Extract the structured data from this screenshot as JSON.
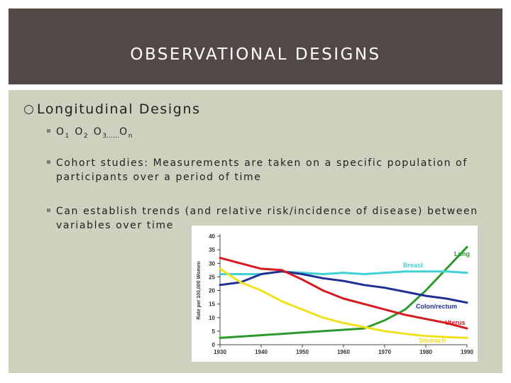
{
  "header": {
    "title": "OBSERVATIONAL DESIGNS"
  },
  "main": {
    "heading": "Longitudinal Designs",
    "observations": [
      {
        "base": "O",
        "sub": "1"
      },
      {
        "base": "O",
        "sub": "2"
      },
      {
        "base": "O",
        "sub": "3……"
      },
      {
        "base": "O",
        "sub": "n"
      }
    ],
    "bullet_cohort": "Cohort studies:  Measurements are taken on a specific population of participants over a period of time",
    "bullet_trends": "Can establish trends (and relative risk/incidence of disease) between variables over time"
  },
  "chart_data": {
    "type": "line",
    "ylabel": "Rate per 100,000 Women",
    "xlim": [
      1930,
      1990
    ],
    "ylim": [
      0,
      40
    ],
    "xticks": [
      "1930",
      "1940",
      "1950",
      "1960",
      "1970",
      "1980",
      "1990"
    ],
    "yticks": [
      "0",
      "5",
      "10",
      "15",
      "20",
      "25",
      "30",
      "35",
      "40"
    ],
    "grid": false,
    "series": [
      {
        "name": "Lung",
        "color": "#2e9a2e",
        "x": [
          1930,
          1935,
          1940,
          1945,
          1950,
          1955,
          1960,
          1965,
          1970,
          1975,
          1980,
          1985,
          1990
        ],
        "y": [
          2.5,
          3,
          3.5,
          4,
          4.5,
          5,
          5.5,
          6,
          9,
          13,
          20,
          28,
          36
        ]
      },
      {
        "name": "Breast",
        "color": "#3fd1d6",
        "x": [
          1930,
          1935,
          1940,
          1945,
          1950,
          1955,
          1960,
          1965,
          1970,
          1975,
          1980,
          1985,
          1990
        ],
        "y": [
          26,
          26,
          26,
          27,
          26.5,
          26,
          26.5,
          26,
          26.5,
          27,
          27,
          27,
          26.5
        ]
      },
      {
        "name": "Colon/rectum",
        "color": "#1f2f94",
        "x": [
          1930,
          1935,
          1940,
          1945,
          1950,
          1955,
          1960,
          1965,
          1970,
          1975,
          1980,
          1985,
          1990
        ],
        "y": [
          22,
          23,
          26,
          27,
          26,
          24.5,
          23.5,
          22,
          21,
          19.5,
          18,
          17,
          15.5
        ]
      },
      {
        "name": "Uterus",
        "color": "#d71920",
        "x": [
          1930,
          1935,
          1940,
          1945,
          1950,
          1955,
          1960,
          1965,
          1970,
          1975,
          1980,
          1985,
          1990
        ],
        "y": [
          32,
          30,
          28,
          27.5,
          24,
          20,
          17,
          15,
          13,
          11,
          9.5,
          8,
          6
        ]
      },
      {
        "name": "Stomach",
        "color": "#f0e11c",
        "x": [
          1930,
          1935,
          1940,
          1945,
          1950,
          1955,
          1960,
          1965,
          1970,
          1975,
          1980,
          1985,
          1990
        ],
        "y": [
          28,
          23,
          20,
          16,
          13,
          10,
          8,
          6.5,
          5,
          4,
          3.2,
          2.8,
          2.5
        ]
      }
    ]
  }
}
